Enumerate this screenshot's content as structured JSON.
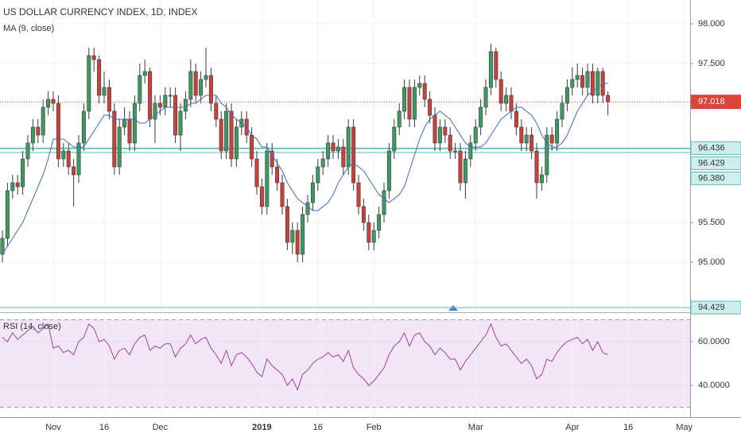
{
  "chart_data": {
    "type": "candlestick",
    "title": "US DOLLAR CURRENCY INDEX, 1D, INDEX",
    "categories": [
      null,
      null,
      null,
      null,
      null,
      null,
      null,
      null,
      null,
      null,
      "Nov",
      null,
      null,
      null,
      null,
      null,
      null,
      null,
      null,
      null,
      "16",
      null,
      null,
      null,
      null,
      null,
      null,
      null,
      null,
      null,
      null,
      "Dec",
      null,
      null,
      null,
      null,
      null,
      null,
      null,
      null,
      null,
      null,
      null,
      null,
      null,
      null,
      null,
      null,
      null,
      null,
      null,
      "2019",
      null,
      null,
      null,
      null,
      null,
      null,
      null,
      null,
      null,
      null,
      "16",
      null,
      null,
      null,
      null,
      null,
      null,
      null,
      null,
      null,
      null,
      "Feb",
      null,
      null,
      null,
      null,
      null,
      null,
      null,
      null,
      null,
      null,
      null,
      null,
      null,
      null,
      null,
      null,
      null,
      null,
      null,
      "Mar",
      null,
      null,
      null,
      null,
      null,
      null,
      null,
      null,
      null,
      null,
      null,
      null,
      null,
      null,
      null,
      null,
      null,
      null,
      "Apr",
      null,
      null,
      null,
      null,
      null,
      null,
      null,
      null,
      null,
      null,
      "16",
      null,
      null,
      null,
      null,
      null,
      null,
      null,
      null,
      null,
      null,
      "May",
      null,
      null,
      null
    ],
    "open": [
      95.1,
      95.3,
      95.9,
      96.0,
      95.95,
      96.3,
      96.5,
      96.7,
      96.6,
      96.95,
      97.05,
      97.0,
      96.3,
      96.4,
      96.2,
      96.1,
      96.5,
      96.9,
      97.6,
      97.55,
      97.1,
      97.2,
      96.9,
      96.2,
      96.7,
      96.8,
      96.5,
      97.0,
      97.35,
      97.4,
      96.8,
      97.0,
      96.95,
      97.1,
      97.1,
      96.6,
      96.9,
      97.05,
      97.4,
      97.1,
      97.3,
      97.35,
      97.0,
      96.8,
      96.4,
      96.9,
      96.3,
      96.7,
      96.8,
      96.6,
      96.3,
      95.95,
      95.7,
      96.4,
      96.2,
      96.0,
      95.7,
      95.25,
      95.4,
      95.1,
      95.6,
      95.75,
      96.0,
      96.2,
      96.3,
      96.5,
      96.4,
      96.45,
      96.2,
      96.7,
      96.0,
      95.7,
      95.5,
      95.25,
      95.4,
      95.6,
      95.9,
      96.4,
      96.7,
      96.9,
      97.2,
      96.8,
      97.2,
      97.25,
      97.05,
      96.85,
      96.5,
      96.7,
      96.6,
      96.4,
      96.4,
      96.0,
      96.3,
      96.5,
      96.7,
      96.95,
      97.2,
      97.65,
      97.3,
      97.0,
      97.1,
      96.9,
      96.7,
      96.5,
      96.6,
      96.4,
      96.0,
      96.1,
      96.6,
      96.5,
      96.8,
      97.0,
      97.2,
      97.3,
      97.35,
      97.2,
      97.4,
      97.1,
      97.4,
      97.1,
      null,
      null,
      null,
      null,
      null,
      null,
      null,
      null,
      null,
      null,
      null,
      null,
      null,
      null,
      null,
      null,
      null,
      null
    ],
    "high": [
      95.4,
      96.0,
      96.1,
      96.1,
      96.4,
      96.6,
      96.8,
      96.8,
      97.05,
      97.15,
      97.15,
      97.1,
      96.5,
      96.5,
      96.3,
      96.6,
      97.0,
      97.7,
      97.7,
      97.6,
      97.4,
      97.3,
      97.0,
      96.8,
      96.95,
      96.9,
      97.1,
      97.5,
      97.55,
      97.45,
      97.1,
      97.1,
      97.2,
      97.2,
      97.2,
      97.0,
      97.15,
      97.55,
      97.5,
      97.4,
      97.7,
      97.45,
      97.1,
      96.9,
      97.0,
      97.0,
      96.8,
      96.9,
      96.9,
      96.7,
      96.4,
      96.05,
      96.5,
      96.5,
      96.3,
      96.1,
      95.8,
      95.5,
      95.5,
      95.7,
      95.85,
      96.1,
      96.3,
      96.4,
      96.6,
      96.6,
      96.55,
      96.55,
      96.8,
      96.8,
      96.1,
      95.8,
      95.6,
      95.5,
      95.7,
      96.0,
      96.5,
      96.8,
      97.0,
      97.3,
      97.3,
      97.3,
      97.35,
      97.35,
      97.15,
      96.95,
      96.8,
      96.8,
      96.7,
      96.5,
      96.5,
      96.4,
      96.6,
      96.8,
      97.05,
      97.3,
      97.75,
      97.7,
      97.4,
      97.2,
      97.2,
      97.0,
      96.8,
      96.7,
      96.7,
      96.5,
      96.2,
      96.7,
      96.7,
      96.9,
      97.1,
      97.3,
      97.45,
      97.5,
      97.45,
      97.5,
      97.5,
      97.45,
      97.45,
      97.15,
      null,
      null,
      null,
      null,
      null,
      null,
      null,
      null,
      null,
      null,
      null,
      null,
      null,
      null,
      null,
      null,
      null,
      null
    ],
    "low": [
      95.0,
      95.2,
      95.8,
      95.85,
      95.85,
      96.2,
      96.4,
      96.5,
      96.5,
      96.85,
      96.9,
      96.2,
      96.2,
      96.1,
      95.7,
      96.0,
      96.4,
      96.8,
      97.4,
      97.0,
      97.0,
      96.8,
      96.1,
      96.1,
      96.6,
      96.4,
      96.4,
      96.9,
      97.25,
      96.7,
      96.5,
      96.85,
      96.85,
      96.95,
      96.5,
      96.4,
      96.8,
      96.95,
      97.0,
      97.0,
      97.2,
      96.9,
      96.7,
      96.3,
      96.3,
      96.2,
      96.2,
      96.6,
      96.5,
      96.2,
      95.85,
      95.6,
      95.6,
      96.1,
      95.9,
      95.6,
      95.15,
      95.1,
      95.0,
      95.0,
      95.5,
      95.65,
      95.9,
      96.1,
      96.2,
      96.3,
      96.3,
      96.1,
      96.1,
      95.9,
      95.6,
      95.4,
      95.15,
      95.15,
      95.3,
      95.5,
      95.8,
      96.3,
      96.6,
      96.8,
      96.7,
      96.7,
      97.1,
      96.95,
      96.75,
      96.4,
      96.4,
      96.5,
      96.3,
      96.3,
      95.9,
      95.8,
      96.2,
      96.4,
      96.6,
      96.85,
      97.1,
      97.2,
      96.9,
      96.9,
      96.8,
      96.6,
      96.4,
      96.4,
      96.3,
      95.8,
      95.9,
      96.0,
      96.4,
      96.4,
      96.7,
      96.9,
      97.1,
      97.2,
      97.1,
      97.1,
      97.0,
      97.0,
      97.0,
      96.85,
      null,
      null,
      null,
      null,
      null,
      null,
      null,
      null,
      null,
      null,
      null,
      null,
      null,
      null,
      null,
      null,
      null,
      null
    ],
    "close": [
      95.3,
      95.9,
      96.0,
      95.95,
      96.3,
      96.5,
      96.7,
      96.6,
      96.95,
      97.05,
      97.0,
      96.3,
      96.4,
      96.2,
      96.1,
      96.5,
      96.9,
      97.6,
      97.55,
      97.1,
      97.2,
      96.9,
      96.2,
      96.7,
      96.8,
      96.5,
      97.0,
      97.35,
      97.4,
      96.8,
      97.0,
      96.95,
      97.1,
      97.1,
      96.6,
      96.9,
      97.05,
      97.4,
      97.1,
      97.3,
      97.35,
      97.0,
      96.8,
      96.4,
      96.9,
      96.3,
      96.7,
      96.8,
      96.6,
      96.3,
      95.95,
      95.7,
      96.4,
      96.2,
      96.0,
      95.7,
      95.25,
      95.4,
      95.1,
      95.6,
      95.75,
      96.0,
      96.2,
      96.3,
      96.5,
      96.4,
      96.45,
      96.2,
      96.7,
      96.0,
      95.7,
      95.5,
      95.25,
      95.4,
      95.6,
      95.9,
      96.4,
      96.7,
      96.9,
      97.2,
      96.8,
      97.2,
      97.25,
      97.05,
      96.85,
      96.5,
      96.7,
      96.6,
      96.4,
      96.4,
      96.0,
      96.3,
      96.5,
      96.7,
      96.95,
      97.2,
      97.65,
      97.3,
      97.0,
      97.1,
      96.9,
      96.7,
      96.5,
      96.6,
      96.4,
      96.0,
      96.1,
      96.6,
      96.5,
      96.8,
      97.0,
      97.2,
      97.3,
      97.35,
      97.2,
      97.4,
      97.1,
      97.4,
      97.1,
      97.018,
      null,
      null,
      null,
      null,
      null,
      null,
      null,
      null,
      null,
      null,
      null,
      null,
      null,
      null,
      null,
      null,
      null,
      null
    ],
    "up_color": "#3d9a62",
    "down_color": "#c9413a",
    "ylim": [
      94.37,
      98.3
    ],
    "yticks": [
      {
        "value": 98,
        "label": "98.000"
      },
      {
        "value": 97.5,
        "label": "97.500"
      },
      {
        "value": 95.5,
        "label": "95.500"
      },
      {
        "value": 95,
        "label": "95.000"
      }
    ],
    "grid": true,
    "ma": {
      "name": "MA (9, close)",
      "color": "#3f6bbf",
      "values": [
        95.1,
        95.2,
        95.3,
        95.4,
        95.5,
        95.65,
        95.8,
        95.95,
        96.1,
        96.3,
        96.55,
        96.55,
        96.55,
        96.5,
        96.45,
        96.45,
        96.45,
        96.55,
        96.65,
        96.75,
        96.85,
        96.85,
        96.8,
        96.8,
        96.8,
        96.8,
        96.8,
        96.75,
        96.75,
        96.8,
        96.85,
        96.9,
        96.95,
        96.95,
        96.95,
        96.95,
        96.95,
        97.0,
        97.0,
        97.05,
        97.1,
        97.1,
        97.1,
        97.0,
        96.95,
        96.85,
        96.8,
        96.75,
        96.7,
        96.6,
        96.55,
        96.45,
        96.45,
        96.35,
        96.25,
        96.15,
        96.0,
        95.9,
        95.8,
        95.75,
        95.7,
        95.65,
        95.65,
        95.7,
        95.75,
        95.85,
        96.0,
        96.1,
        96.2,
        96.25,
        96.2,
        96.15,
        96.05,
        95.95,
        95.85,
        95.8,
        95.75,
        95.8,
        95.85,
        95.95,
        96.15,
        96.35,
        96.55,
        96.7,
        96.8,
        96.85,
        96.9,
        96.85,
        96.8,
        96.7,
        96.6,
        96.5,
        96.45,
        96.45,
        96.45,
        96.5,
        96.6,
        96.7,
        96.8,
        96.85,
        96.9,
        96.95,
        96.95,
        96.9,
        96.85,
        96.75,
        96.6,
        96.5,
        96.45,
        96.45,
        96.5,
        96.6,
        96.75,
        96.9,
        97.0,
        97.1,
        97.15,
        97.2,
        97.25,
        97.25,
        null,
        null,
        null,
        null,
        null,
        null,
        null,
        null,
        null,
        null,
        null,
        null,
        null,
        null,
        null,
        null,
        null,
        null
      ]
    },
    "last_price": 97.018,
    "last_price_color": "#d9453b",
    "levels": [
      96.429,
      96.436,
      {
        "value": 96.38,
        "label": "96.380"
      },
      94.429
    ],
    "level_color": "#62b8b8",
    "rsi": {
      "name": "RSI (14, close)",
      "color": "#a13fa8",
      "values": [
        62,
        60,
        64,
        61,
        63,
        65,
        67,
        64,
        66,
        68,
        57,
        58,
        55,
        56,
        54,
        60,
        62,
        68,
        66,
        60,
        61,
        58,
        52,
        56,
        57,
        54,
        59,
        62,
        63,
        56,
        58,
        57,
        59,
        59,
        53,
        57,
        59,
        63,
        59,
        61,
        62,
        57,
        54,
        50,
        56,
        49,
        54,
        55,
        53,
        50,
        46,
        44,
        52,
        49,
        47,
        45,
        40,
        43,
        38,
        45,
        47,
        50,
        52,
        53,
        55,
        53,
        54,
        51,
        56,
        48,
        45,
        43,
        40,
        42,
        45,
        48,
        54,
        58,
        60,
        64,
        58,
        63,
        64,
        60,
        58,
        54,
        57,
        55,
        52,
        52,
        47,
        51,
        54,
        57,
        60,
        63,
        68,
        62,
        58,
        59,
        56,
        53,
        50,
        52,
        49,
        43,
        45,
        52,
        51,
        55,
        58,
        60,
        61,
        62,
        59,
        61,
        56,
        60,
        55,
        54,
        null,
        null,
        null,
        null,
        null,
        null,
        null,
        null,
        null,
        null,
        null,
        null,
        null,
        null,
        null,
        null,
        null,
        null
      ],
      "ylim": [
        25.5,
        72.7
      ],
      "yticks": [
        {
          "value": 60,
          "label": "60.0000"
        },
        {
          "value": 40,
          "label": "40.0000"
        }
      ],
      "bands": [
        30,
        70
      ]
    }
  }
}
